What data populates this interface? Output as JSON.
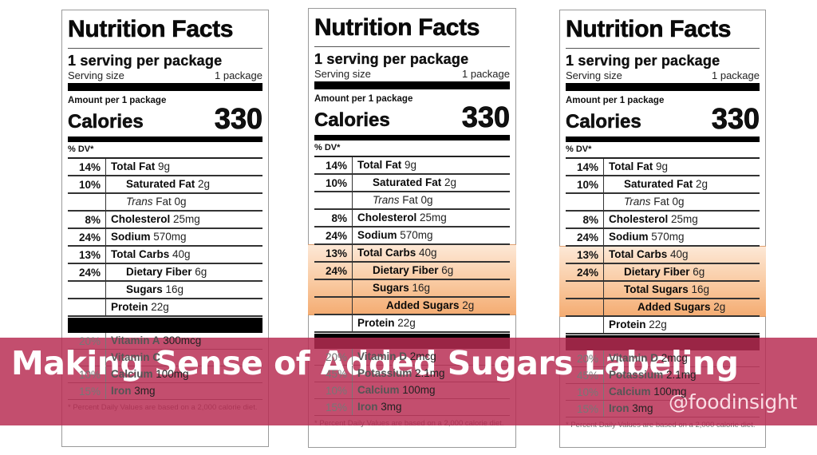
{
  "labels": [
    {
      "id": "current",
      "title": "Nutrition Facts",
      "servings": "1 serving per package",
      "serving_size_label": "Serving size",
      "serving_size_value": "1 package",
      "amount_per": "Amount per 1 package",
      "calories_label": "Calories",
      "calories_value": "330",
      "dv_header": "% DV*",
      "rows": [
        {
          "pct": "14%",
          "name": "Total Fat",
          "amount": "9g",
          "indent": 0
        },
        {
          "pct": "10%",
          "name": "Saturated Fat",
          "amount": "2g",
          "indent": 1
        },
        {
          "pct": "",
          "name": "Trans",
          "name_suffix": "Fat",
          "amount": "0g",
          "indent": 1
        },
        {
          "pct": "8%",
          "name": "Cholesterol",
          "amount": "25mg",
          "indent": 0
        },
        {
          "pct": "24%",
          "name": "Sodium",
          "amount": "570mg",
          "indent": 0
        },
        {
          "pct": "13%",
          "name": "Total Carbs",
          "amount": "40g",
          "indent": 0
        },
        {
          "pct": "24%",
          "name": "Dietary Fiber",
          "amount": "6g",
          "indent": 1
        },
        {
          "pct": "",
          "name": "Sugars",
          "amount": "16g",
          "indent": 1
        },
        {
          "pct": "",
          "name": "Protein",
          "amount": "22g",
          "indent": 0
        }
      ],
      "vitamins": [
        {
          "pct": "20%",
          "name": "Vitamin A",
          "amount": "300mcg"
        },
        {
          "pct": "",
          "name": "Vitamin C",
          "amount": ""
        },
        {
          "pct": "10%",
          "name": "Calcium",
          "amount": "100mg"
        },
        {
          "pct": "15%",
          "name": "Iron",
          "amount": "3mg"
        }
      ],
      "footnote": "* Percent Daily Values are based on a 2,000 calorie diet."
    },
    {
      "id": "proposed-added-sugars",
      "title": "Nutrition Facts",
      "servings": "1 serving per package",
      "serving_size_label": "Serving size",
      "serving_size_value": "1 package",
      "amount_per": "Amount per 1 package",
      "calories_label": "Calories",
      "calories_value": "330",
      "dv_header": "% DV*",
      "rows": [
        {
          "pct": "14%",
          "name": "Total Fat",
          "amount": "9g",
          "indent": 0
        },
        {
          "pct": "10%",
          "name": "Saturated Fat",
          "amount": "2g",
          "indent": 1
        },
        {
          "pct": "",
          "name": "Trans",
          "name_suffix": "Fat",
          "amount": "0g",
          "indent": 1
        },
        {
          "pct": "8%",
          "name": "Cholesterol",
          "amount": "25mg",
          "indent": 0
        },
        {
          "pct": "24%",
          "name": "Sodium",
          "amount": "570mg",
          "indent": 0
        },
        {
          "pct": "13%",
          "name": "Total Carbs",
          "amount": "40g",
          "indent": 0,
          "highlight": true
        },
        {
          "pct": "24%",
          "name": "Dietary Fiber",
          "amount": "6g",
          "indent": 1,
          "highlight": true
        },
        {
          "pct": "",
          "name": "Sugars",
          "amount": "16g",
          "indent": 1,
          "highlight": true
        },
        {
          "pct": "",
          "name": "Added Sugars",
          "amount": "2g",
          "indent": 2,
          "highlight": true
        },
        {
          "pct": "",
          "name": "Protein",
          "amount": "22g",
          "indent": 0
        }
      ],
      "vitamins": [
        {
          "pct": "20%",
          "name": "Vitamin D",
          "amount": "2mcg"
        },
        {
          "pct": "45%",
          "name": "Potassium",
          "amount": "2.1mg"
        },
        {
          "pct": "10%",
          "name": "Calcium",
          "amount": "100mg"
        },
        {
          "pct": "15%",
          "name": "Iron",
          "amount": "3mg"
        }
      ],
      "footnote": "* Percent Daily Values are based on a 2,000 calorie diet."
    },
    {
      "id": "final-total-sugars",
      "title": "Nutrition Facts",
      "servings": "1 serving per package",
      "serving_size_label": "Serving size",
      "serving_size_value": "1 package",
      "amount_per": "Amount per 1 package",
      "calories_label": "Calories",
      "calories_value": "330",
      "dv_header": "% DV*",
      "rows": [
        {
          "pct": "14%",
          "name": "Total Fat",
          "amount": "9g",
          "indent": 0
        },
        {
          "pct": "10%",
          "name": "Saturated Fat",
          "amount": "2g",
          "indent": 1
        },
        {
          "pct": "",
          "name": "Trans",
          "name_suffix": "Fat",
          "amount": "0g",
          "indent": 1
        },
        {
          "pct": "8%",
          "name": "Cholesterol",
          "amount": "25mg",
          "indent": 0
        },
        {
          "pct": "24%",
          "name": "Sodium",
          "amount": "570mg",
          "indent": 0
        },
        {
          "pct": "13%",
          "name": "Total Carbs",
          "amount": "40g",
          "indent": 0,
          "highlight": true
        },
        {
          "pct": "24%",
          "name": "Dietary Fiber",
          "amount": "6g",
          "indent": 1,
          "highlight": true
        },
        {
          "pct": "",
          "name": "Total Sugars",
          "amount": "16g",
          "indent": 1,
          "highlight": true
        },
        {
          "pct": "",
          "name": "Added Sugars",
          "amount": "2g",
          "indent": 2,
          "highlight": true
        },
        {
          "pct": "",
          "name": "Protein",
          "amount": "22g",
          "indent": 0
        }
      ],
      "vitamins": [
        {
          "pct": "20%",
          "name": "Vitamin D",
          "amount": "2mcg"
        },
        {
          "pct": "45%",
          "name": "Potassium",
          "amount": "2.1mg"
        },
        {
          "pct": "10%",
          "name": "Calcium",
          "amount": "100mg"
        },
        {
          "pct": "15%",
          "name": "Iron",
          "amount": "3mg"
        }
      ],
      "footnote": "* Percent Daily Values are based on a 2,000 calorie diet."
    }
  ],
  "banner": {
    "title": "Making Sense of Added Sugars Labeling",
    "handle": "@foodinsight",
    "color": "#b72c52"
  },
  "highlight_color": "#f9c9a0"
}
